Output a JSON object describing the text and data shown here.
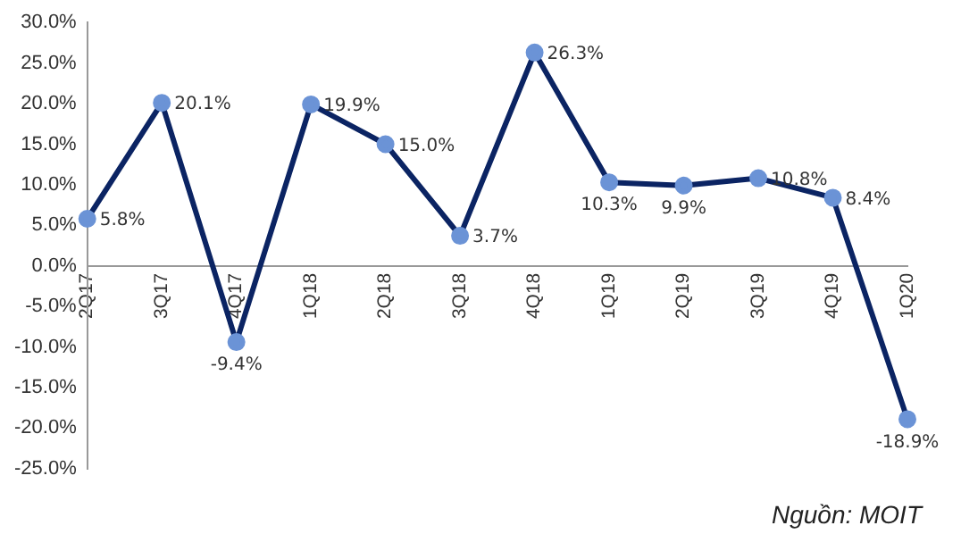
{
  "chart_data": {
    "type": "line",
    "categories": [
      "2Q17",
      "3Q17",
      "4Q17",
      "1Q18",
      "2Q18",
      "3Q18",
      "4Q18",
      "1Q19",
      "2Q19",
      "3Q19",
      "4Q19",
      "1Q20"
    ],
    "series": [
      {
        "color": "#0b2463",
        "values": [
          5.8,
          20.1,
          -9.4,
          19.9,
          15.0,
          3.7,
          26.3,
          10.3,
          9.9,
          10.8,
          8.4,
          -18.9
        ],
        "value_labels": [
          "5.8%",
          "20.1%",
          "-9.4%",
          "19.9%",
          "15.0%",
          "3.7%",
          "26.3%",
          "10.3%",
          "9.9%",
          "10.8%",
          "8.4%",
          "-18.9%"
        ]
      }
    ],
    "ylim": [
      -25,
      30
    ],
    "yticks": [
      {
        "value": 30,
        "label": "30.0%"
      },
      {
        "value": 25,
        "label": "25.0%"
      },
      {
        "value": 20,
        "label": "20.0%"
      },
      {
        "value": 15,
        "label": "15.0%"
      },
      {
        "value": 10,
        "label": "10.0%"
      },
      {
        "value": 5,
        "label": "5.0%"
      },
      {
        "value": 0,
        "label": "0.0%"
      },
      {
        "value": -5,
        "label": "-5.0%"
      },
      {
        "value": -10,
        "label": "-10.0%"
      },
      {
        "value": -15,
        "label": "-15.0%"
      },
      {
        "value": -20,
        "label": "-20.0%"
      },
      {
        "value": -25,
        "label": "-25.0%"
      }
    ],
    "grid": false,
    "legend": false,
    "marker": "circle",
    "line_style": "solid",
    "annotations": [
      "Nguồn: MOIT"
    ]
  }
}
